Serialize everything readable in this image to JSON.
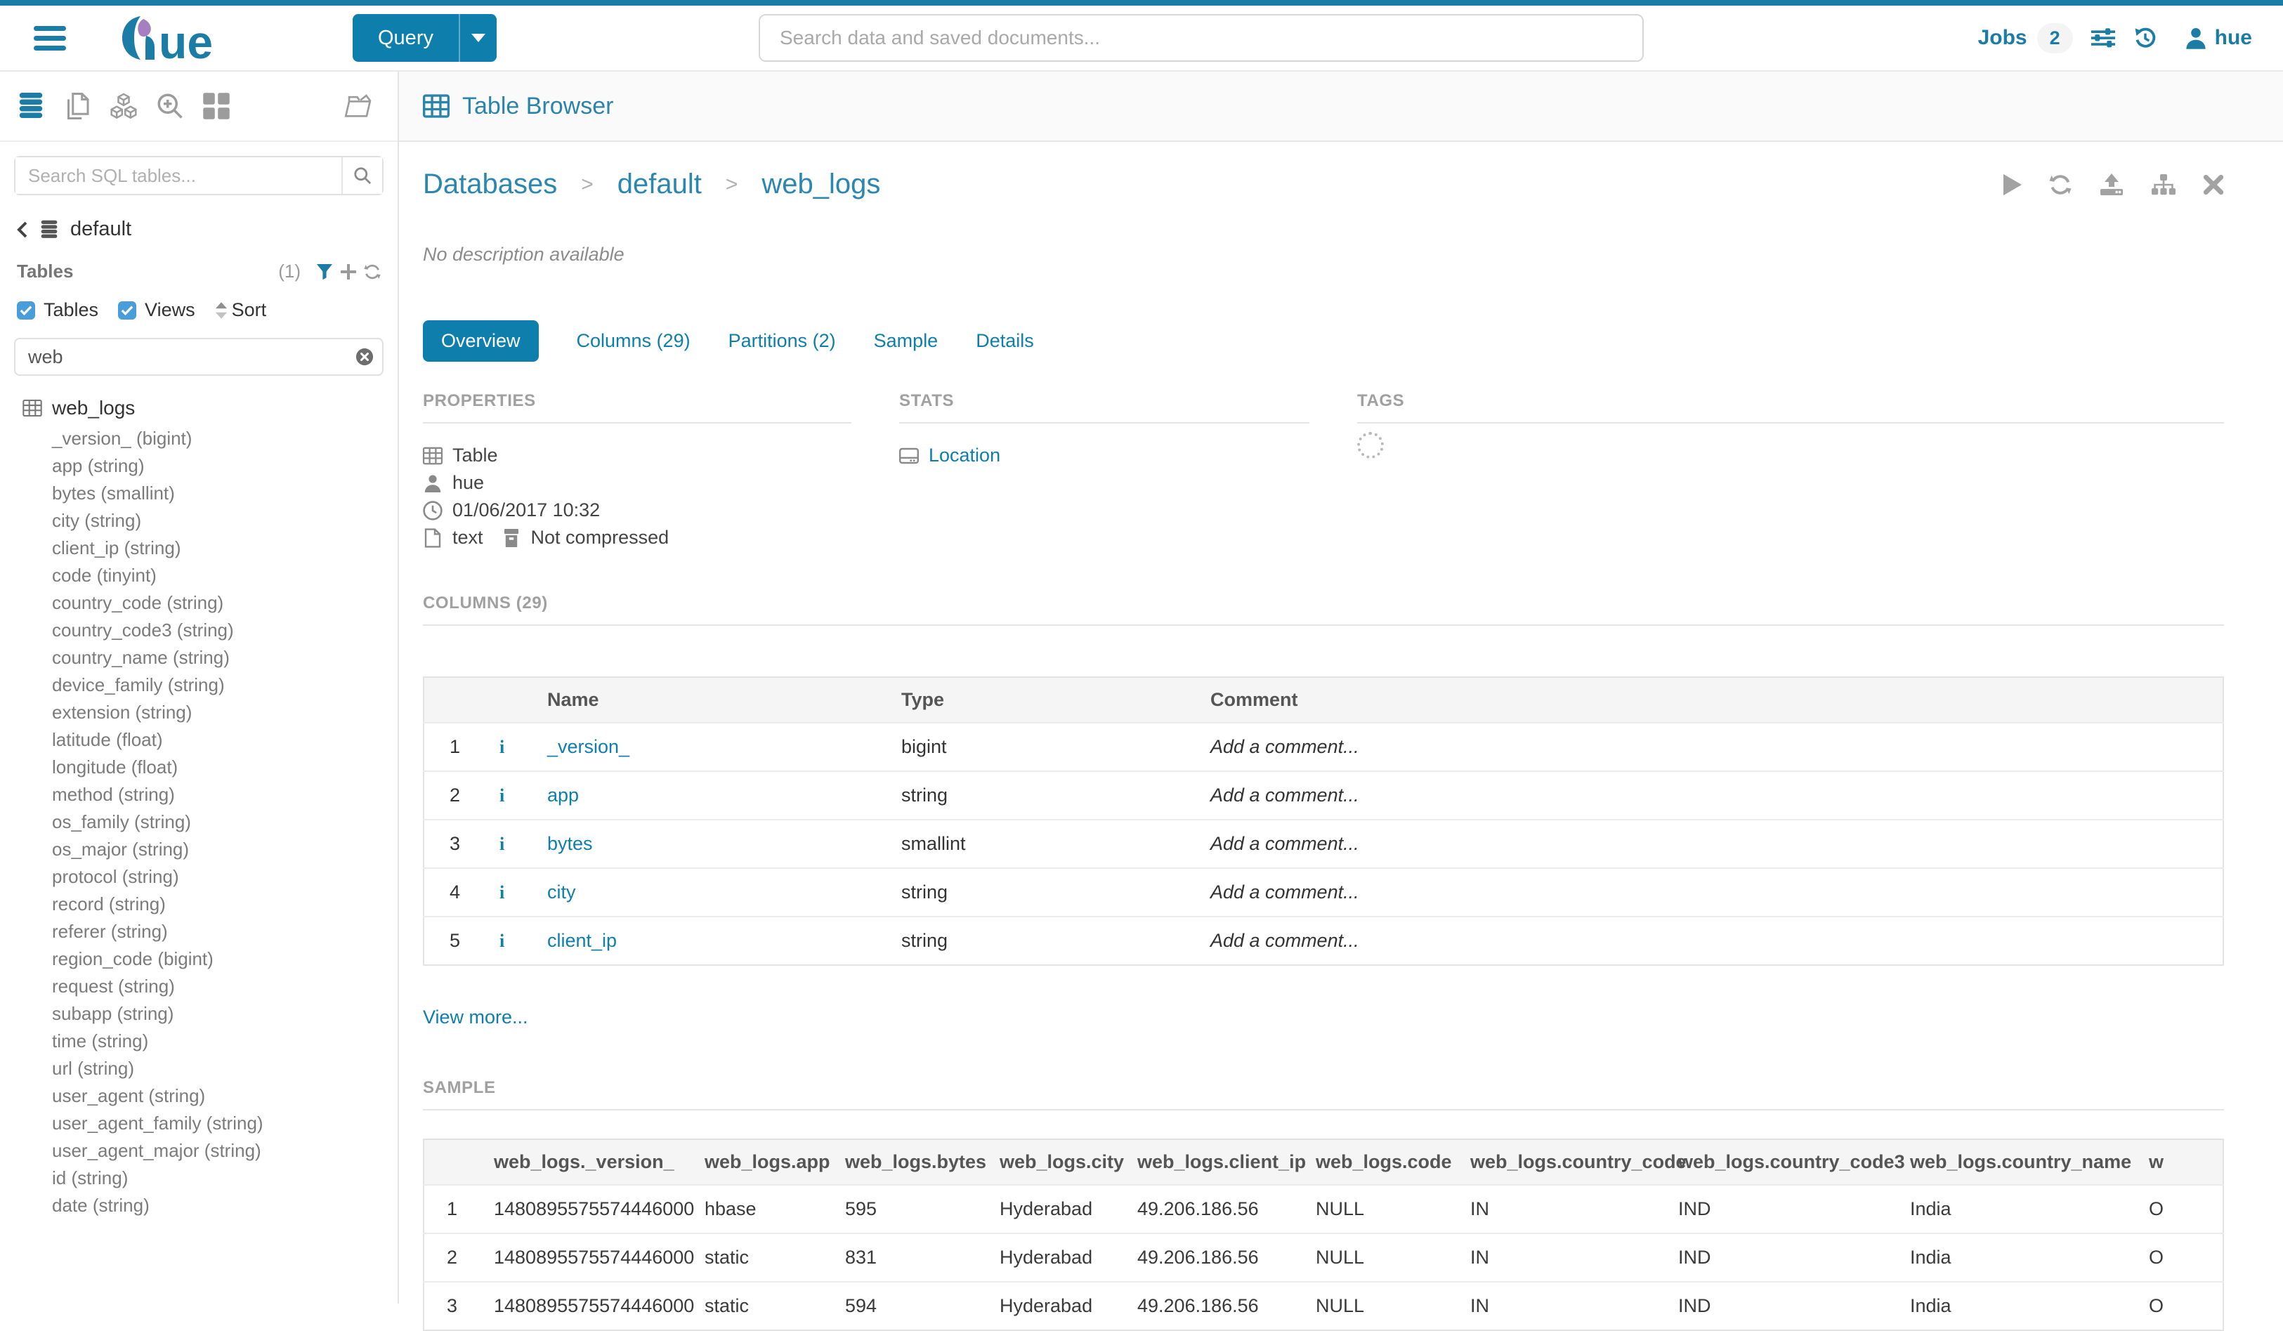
{
  "icons": {
    "info_glyph": "i"
  },
  "topbar": {
    "query_label": "Query",
    "search_placeholder": "Search data and saved documents...",
    "jobs_label": "Jobs",
    "jobs_count": "2",
    "user_name": "hue",
    "brand_color": "#1b7ca6",
    "accent_color": "#0e7fac"
  },
  "sidebar": {
    "search_placeholder": "Search SQL tables...",
    "database_name": "default",
    "tables_label": "Tables",
    "tables_count": "(1)",
    "checkbox_tables_label": "Tables",
    "checkbox_views_label": "Views",
    "sort_label": "Sort",
    "filter_value": "web",
    "table_name": "web_logs",
    "columns": [
      "_version_ (bigint)",
      "app (string)",
      "bytes (smallint)",
      "city (string)",
      "client_ip (string)",
      "code (tinyint)",
      "country_code (string)",
      "country_code3 (string)",
      "country_name (string)",
      "device_family (string)",
      "extension (string)",
      "latitude (float)",
      "longitude (float)",
      "method (string)",
      "os_family (string)",
      "os_major (string)",
      "protocol (string)",
      "record (string)",
      "referer (string)",
      "region_code (bigint)",
      "request (string)",
      "subapp (string)",
      "time (string)",
      "url (string)",
      "user_agent (string)",
      "user_agent_family (string)",
      "user_agent_major (string)",
      "id (string)",
      "date (string)"
    ]
  },
  "main": {
    "title": "Table Browser",
    "breadcrumb": [
      "Databases",
      "default",
      "web_logs"
    ],
    "breadcrumb_separator": ">",
    "description": "No description available",
    "tabs": [
      {
        "label": "Overview",
        "active": true
      },
      {
        "label": "Columns (29)",
        "active": false
      },
      {
        "label": "Partitions (2)",
        "active": false
      },
      {
        "label": "Sample",
        "active": false
      },
      {
        "label": "Details",
        "active": false
      }
    ],
    "properties": {
      "heading": "PROPERTIES",
      "object_type": "Table",
      "owner": "hue",
      "created": "01/06/2017 10:32",
      "format": "text",
      "compression": "Not compressed"
    },
    "stats": {
      "heading": "STATS",
      "location_label": "Location"
    },
    "tags": {
      "heading": "TAGS"
    },
    "columns_section": {
      "heading": "COLUMNS (29)",
      "headers": [
        "Name",
        "Type",
        "Comment"
      ],
      "rows": [
        {
          "num": "1",
          "name": "_version_",
          "type": "bigint",
          "comment": "Add a comment..."
        },
        {
          "num": "2",
          "name": "app",
          "type": "string",
          "comment": "Add a comment..."
        },
        {
          "num": "3",
          "name": "bytes",
          "type": "smallint",
          "comment": "Add a comment..."
        },
        {
          "num": "4",
          "name": "city",
          "type": "string",
          "comment": "Add a comment..."
        },
        {
          "num": "5",
          "name": "client_ip",
          "type": "string",
          "comment": "Add a comment..."
        }
      ],
      "view_more": "View more..."
    },
    "sample_section": {
      "heading": "SAMPLE",
      "headers": [
        "",
        "web_logs._version_",
        "web_logs.app",
        "web_logs.bytes",
        "web_logs.city",
        "web_logs.client_ip",
        "web_logs.code",
        "web_logs.country_code",
        "web_logs.country_code3",
        "web_logs.country_name",
        "w"
      ],
      "rows": [
        [
          "1",
          "1480895575574446000",
          "hbase",
          "595",
          "Hyderabad",
          "49.206.186.56",
          "NULL",
          "IN",
          "IND",
          "India",
          "O"
        ],
        [
          "2",
          "1480895575574446000",
          "static",
          "831",
          "Hyderabad",
          "49.206.186.56",
          "NULL",
          "IN",
          "IND",
          "India",
          "O"
        ],
        [
          "3",
          "1480895575574446000",
          "static",
          "594",
          "Hyderabad",
          "49.206.186.56",
          "NULL",
          "IN",
          "IND",
          "India",
          "O"
        ]
      ]
    }
  }
}
